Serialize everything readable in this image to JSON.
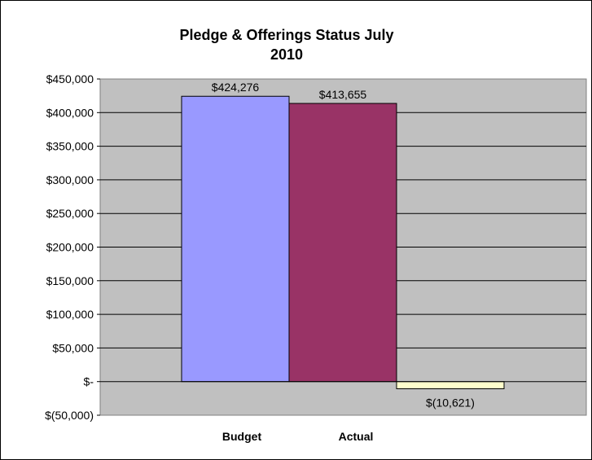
{
  "chart_data": {
    "type": "bar",
    "title_lines": [
      "Pledge & Offerings Status July",
      "2010"
    ],
    "ylim": [
      -50000,
      450000
    ],
    "y_ticks": [
      {
        "value": 450000,
        "label": "$450,000"
      },
      {
        "value": 400000,
        "label": "$400,000"
      },
      {
        "value": 350000,
        "label": "$350,000"
      },
      {
        "value": 300000,
        "label": "$300,000"
      },
      {
        "value": 250000,
        "label": "$250,000"
      },
      {
        "value": 200000,
        "label": "$200,000"
      },
      {
        "value": 150000,
        "label": "$150,000"
      },
      {
        "value": 100000,
        "label": "$100,000"
      },
      {
        "value": 50000,
        "label": "$50,000"
      },
      {
        "value": 0,
        "label": "$-"
      },
      {
        "value": -50000,
        "label": "$(50,000)"
      }
    ],
    "category_labels": [
      "Budget",
      "Actual"
    ],
    "bars": [
      {
        "value": 424276,
        "label": "$424,276",
        "color": "#9999ff"
      },
      {
        "value": 413655,
        "label": "$413,655",
        "color": "#993366"
      },
      {
        "value": -10621,
        "label": "$(10,621)",
        "color": "#ffffcc"
      }
    ],
    "plot_background": "#c0c0c0",
    "grid": true,
    "legend": "none"
  }
}
